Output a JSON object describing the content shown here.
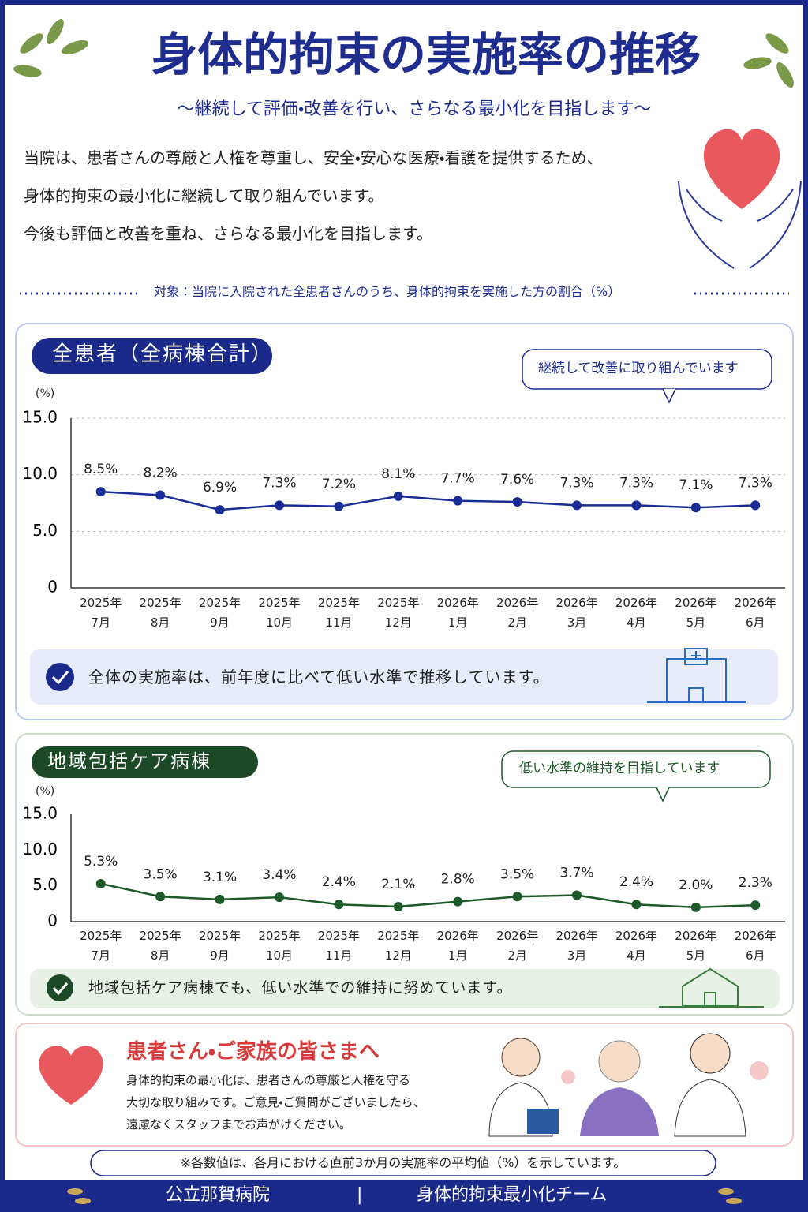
{
  "header": {
    "title": "身体的拘束の実施率の推移",
    "subtitle": "～継続して評価・改善を行い、さらなる最小化を目指します～"
  },
  "intro": [
    "当院は、患者さんの尊厳と人権を尊重し、安全・安心な医療・看護を提供するため、",
    "身体的拘束の最小化に継続して取り組んでいます。",
    "今後も評価と改善を重ね、さらなる最小化を目指します。"
  ],
  "target_note": "対象：当院に入院された全患者さんのうち、身体的拘束を実施した方の割合（%）",
  "chart_data": [
    {
      "type": "line",
      "title": "全患者（全病棟合計）",
      "callout": "継続して改善に取り組んでいます",
      "y_unit": "(%)",
      "categories": [
        "2025年\n7月",
        "2025年\n8月",
        "2025年\n9月",
        "2025年\n10月",
        "2025年\n11月",
        "2025年\n12月",
        "2026年\n1月",
        "2026年\n2月",
        "2026年\n3月",
        "2026年\n4月",
        "2026年\n5月",
        "2026年\n6月"
      ],
      "series": [
        {
          "color": "#1a2d96",
          "values": [
            8.5,
            8.2,
            6.9,
            7.3,
            7.2,
            8.1,
            7.7,
            7.6,
            7.3,
            7.3,
            7.1,
            7.3
          ],
          "value_labels": [
            "8.5%",
            "8.2%",
            "6.9%",
            "7.3%",
            "7.2%",
            "8.1%",
            "7.7%",
            "7.6%",
            "7.3%",
            "7.3%",
            "7.1%",
            "7.3%"
          ]
        }
      ],
      "ylim": [
        0,
        15
      ],
      "yticks": [
        0,
        {
          "value": 5,
          "label": "5.0"
        },
        {
          "value": 10,
          "label": "10.0"
        },
        {
          "value": 15,
          "label": "15.0"
        }
      ],
      "grid": true,
      "summary": "全体の実施率は、前年度に比べて低い水準で推移しています。"
    },
    {
      "type": "line",
      "title": "地域包括ケア病棟",
      "callout": "低い水準の維持を目指しています",
      "y_unit": "(%)",
      "categories": [
        "2025年\n7月",
        "2025年\n8月",
        "2025年\n9月",
        "2025年\n10月",
        "2025年\n11月",
        "2025年\n12月",
        "2026年\n1月",
        "2026年\n2月",
        "2026年\n3月",
        "2026年\n4月",
        "2026年\n5月",
        "2026年\n6月"
      ],
      "series": [
        {
          "color": "#1d5a2a",
          "values": [
            5.3,
            3.5,
            3.1,
            3.4,
            2.4,
            2.1,
            2.8,
            3.5,
            3.7,
            2.4,
            2.0,
            2.3
          ],
          "value_labels": [
            "5.3%",
            "3.5%",
            "3.1%",
            "3.4%",
            "2.4%",
            "2.1%",
            "2.8%",
            "3.5%",
            "3.7%",
            "2.4%",
            "2.0%",
            "2.3%"
          ]
        }
      ],
      "ylim": [
        0,
        15
      ],
      "yticks": [
        0,
        {
          "value": 5,
          "label": "5.0"
        },
        {
          "value": 10,
          "label": "10.0"
        },
        {
          "value": 15,
          "label": "15.0"
        }
      ],
      "grid": false,
      "summary": "地域包括ケア病棟でも、低い水準での維持に努めています。"
    }
  ],
  "message": {
    "title": "患者さん・ご家族の皆さまへ",
    "body": [
      "身体的拘束の最小化は、患者さんの尊厳と人権を守る",
      "大切な取り組みです。ご意見・ご質問がございましたら、",
      "遠慮なくスタッフまでお声がけください。"
    ]
  },
  "footnote": "※各数値は、各月における直前3か月の実施率の平均値（%）を示しています。",
  "footer": {
    "hospital": "公立那賀病院",
    "separator": "|",
    "team": "身体的拘束最小化チーム"
  }
}
